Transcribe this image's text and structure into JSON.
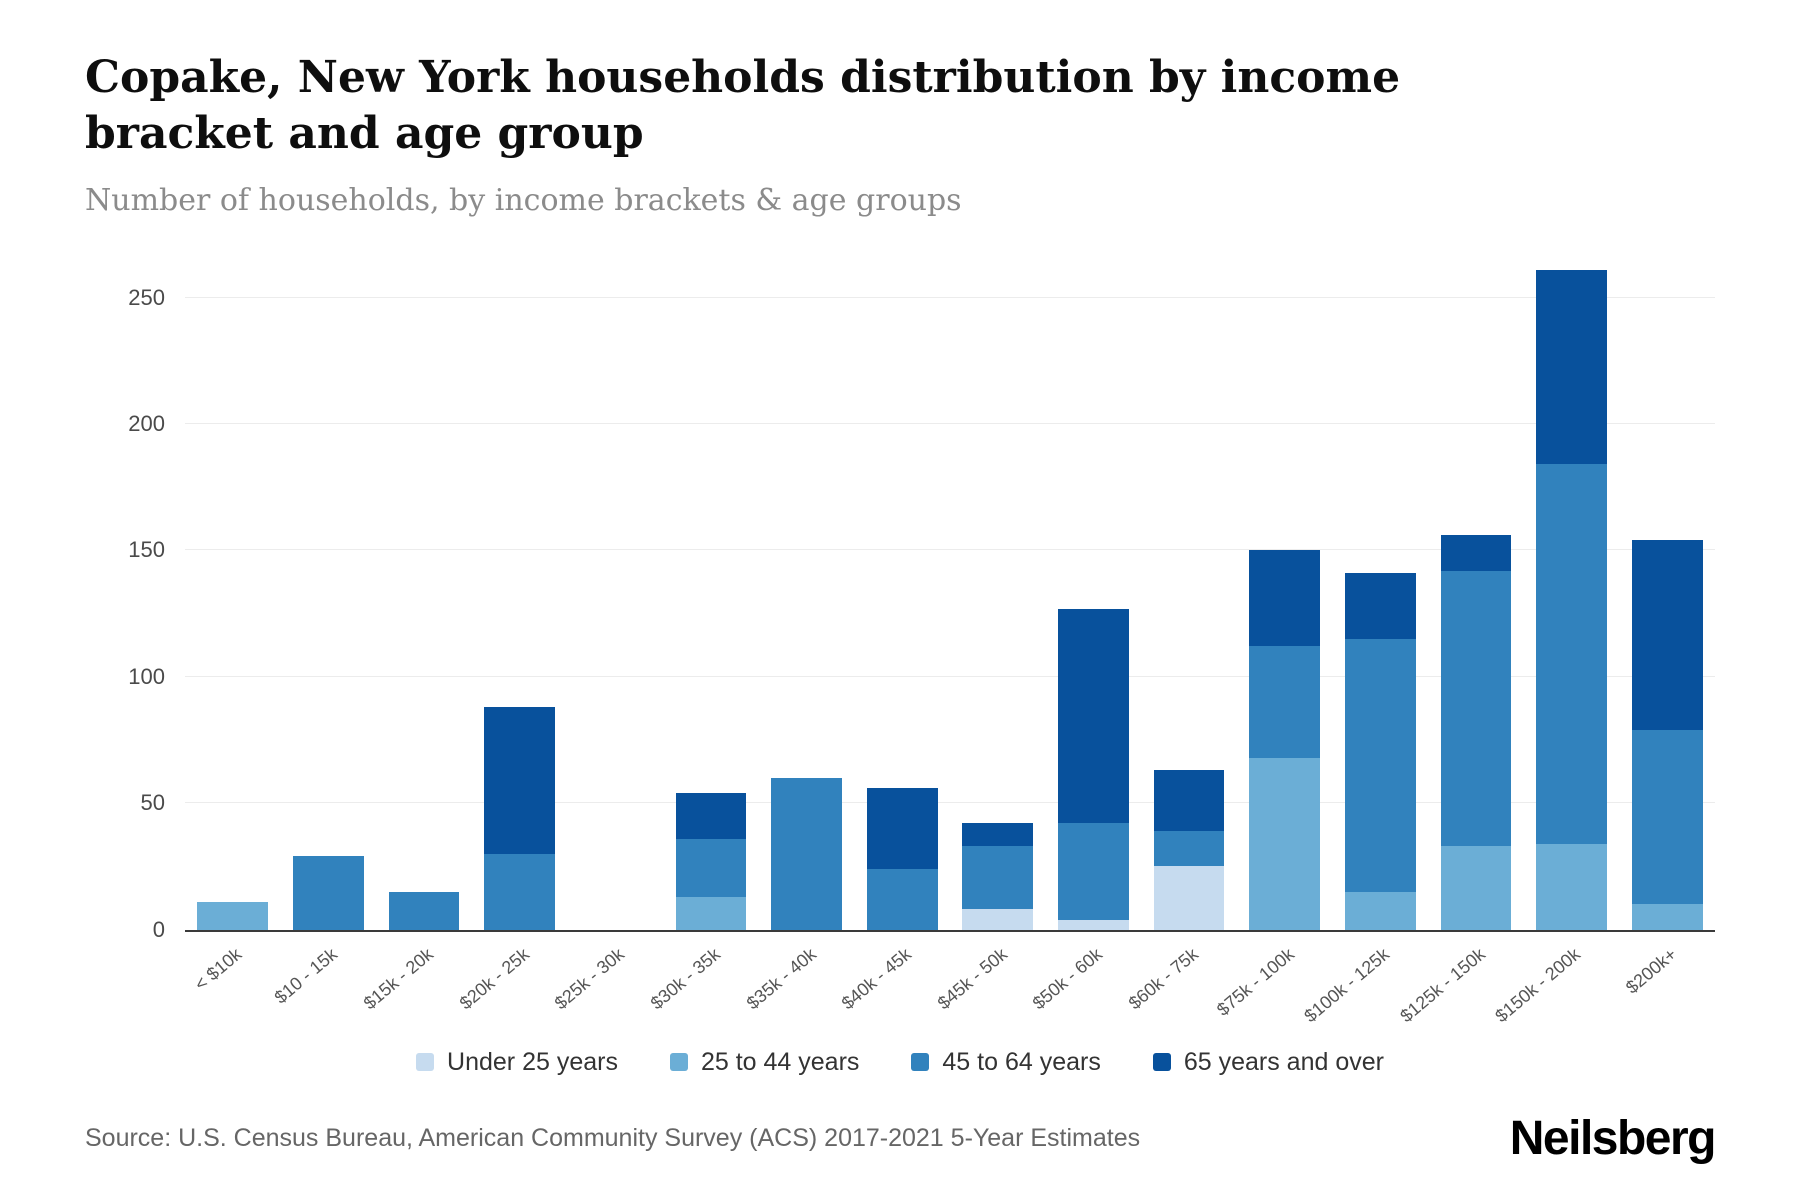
{
  "header": {
    "title": "Copake, New York households distribution by income bracket and age group",
    "subtitle": "Number of households, by income brackets & age groups"
  },
  "footer": {
    "source": "Source: U.S. Census Bureau, American Community Survey (ACS) 2017-2021 5-Year Estimates",
    "brand": "Neilsberg"
  },
  "chart_data": {
    "type": "bar",
    "stacked": true,
    "title": "Copake, New York households distribution by income bracket and age group",
    "subtitle": "Number of households, by income brackets & age groups",
    "categories": [
      "< $10k",
      "$10 - 15k",
      "$15k - 20k",
      "$20k - 25k",
      "$25k - 30k",
      "$30k - 35k",
      "$35k - 40k",
      "$40k - 45k",
      "$45k - 50k",
      "$50k - 60k",
      "$60k - 75k",
      "$75k - 100k",
      "$100k - 125k",
      "$125k - 150k",
      "$150k - 200k",
      "$200k+"
    ],
    "series": [
      {
        "name": "Under 25 years",
        "color": "#c6dbef",
        "values": [
          0,
          0,
          0,
          0,
          0,
          0,
          0,
          0,
          8,
          4,
          25,
          0,
          0,
          0,
          0,
          0
        ]
      },
      {
        "name": "25 to 44 years",
        "color": "#6baed6",
        "values": [
          11,
          0,
          0,
          0,
          0,
          13,
          0,
          0,
          0,
          0,
          0,
          68,
          15,
          33,
          34,
          10
        ]
      },
      {
        "name": "45 to 64 years",
        "color": "#3182bd",
        "values": [
          0,
          29,
          15,
          30,
          0,
          23,
          60,
          24,
          25,
          38,
          14,
          44,
          100,
          109,
          150,
          69
        ]
      },
      {
        "name": "65 years and over",
        "color": "#08519c",
        "values": [
          0,
          0,
          0,
          58,
          0,
          18,
          0,
          32,
          9,
          85,
          24,
          38,
          26,
          14,
          77,
          75
        ]
      }
    ],
    "totals": [
      11,
      29,
      15,
      88,
      0,
      54,
      60,
      56,
      42,
      127,
      63,
      150,
      141,
      156,
      261,
      154
    ],
    "xlabel": "",
    "ylabel": "",
    "ylim": [
      0,
      265
    ],
    "yticks": [
      0,
      50,
      100,
      150,
      200,
      250
    ],
    "grid": true,
    "legend_position": "bottom"
  }
}
